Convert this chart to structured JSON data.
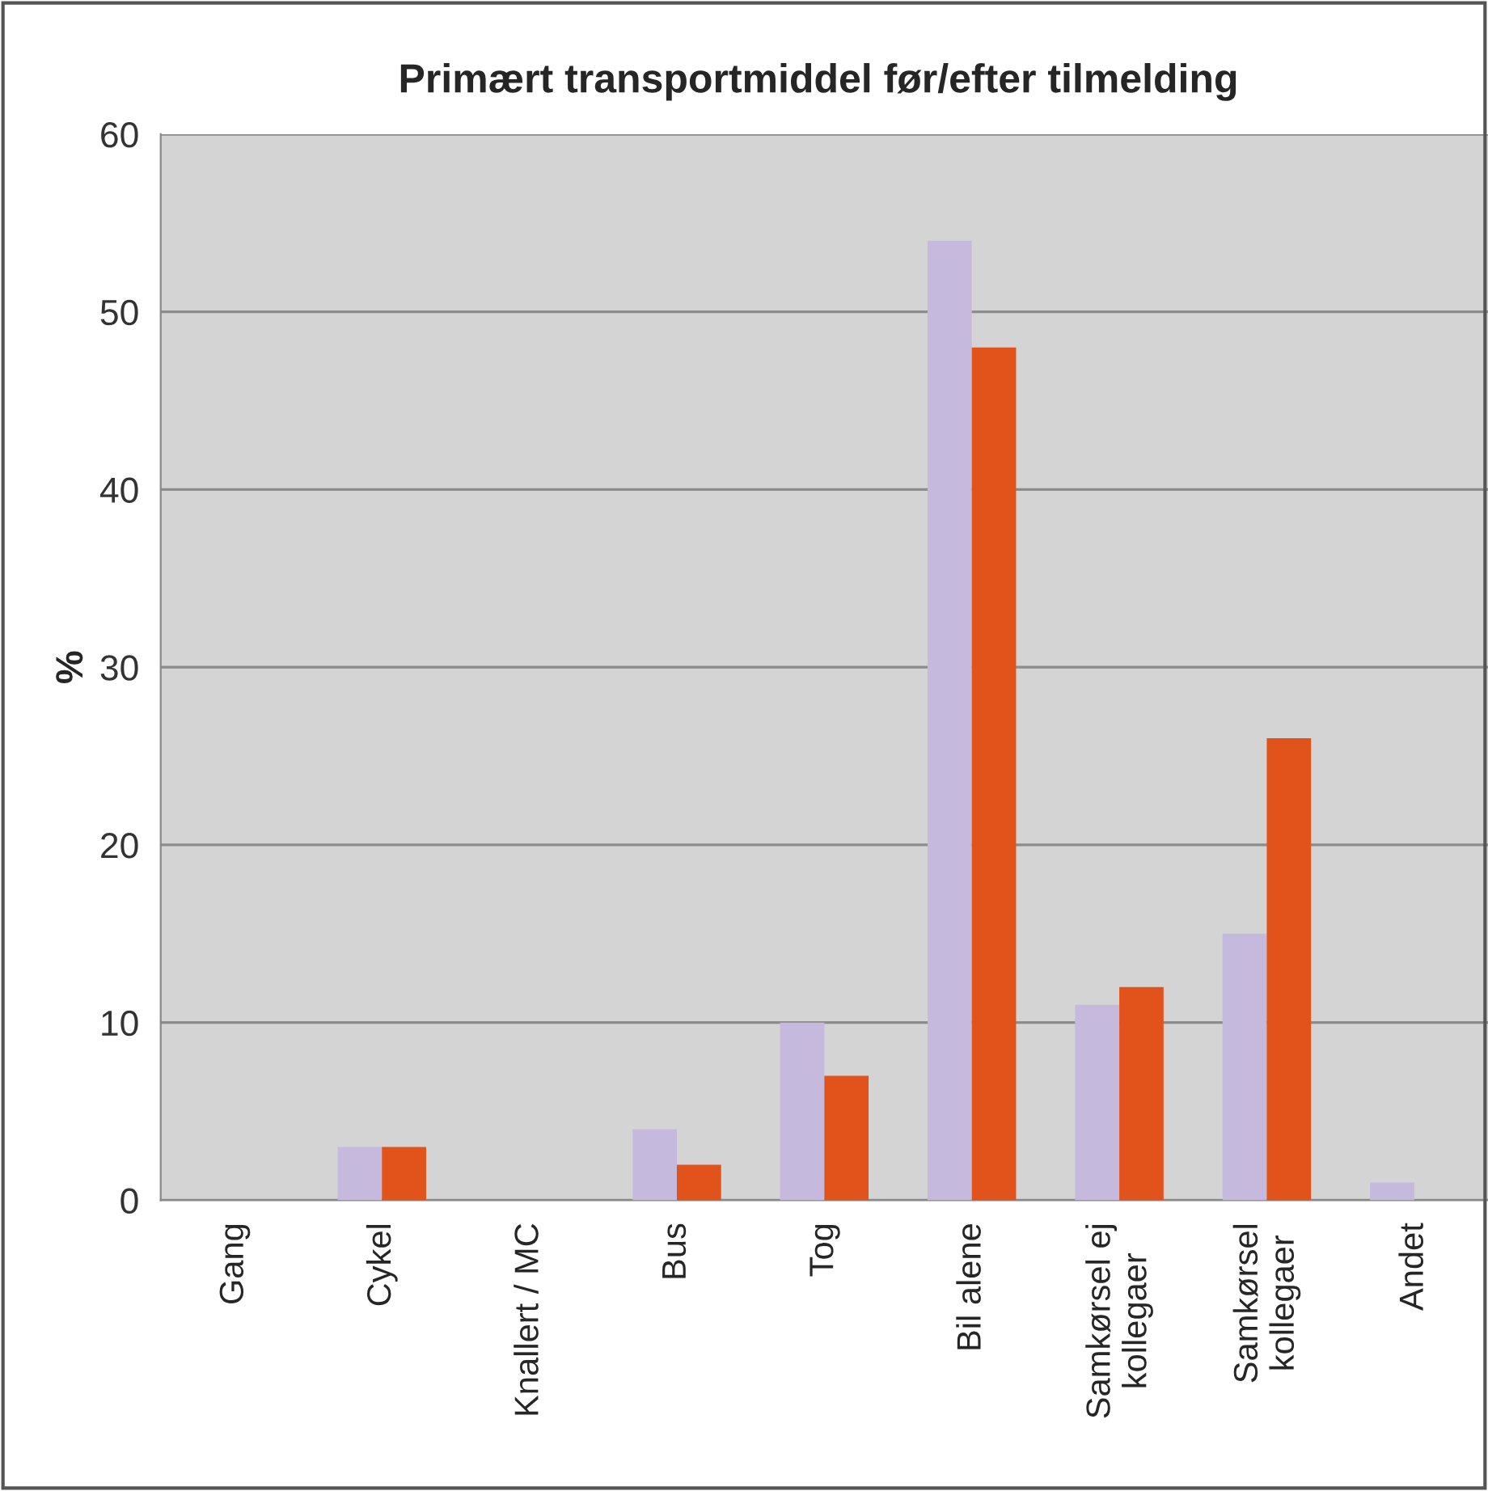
{
  "chart_data": {
    "type": "bar",
    "title": "Primært transportmiddel før/efter tilmelding",
    "ylabel": "%",
    "categories": [
      "Gang",
      "Cykel",
      "Knallert / MC",
      "Bus",
      "Tog",
      "Bil alene",
      "Samkørsel ej\nkollegaer",
      "Samkørsel\nkollegaer",
      "Andet"
    ],
    "series": [
      {
        "color": "#c5b9dd",
        "values": [
          0,
          3,
          0,
          4,
          10,
          54,
          11,
          15,
          1
        ]
      },
      {
        "color": "#e2521b",
        "values": [
          0,
          3,
          0,
          2,
          7,
          48,
          12,
          26,
          0
        ]
      }
    ],
    "ylim": [
      0,
      60
    ],
    "yticks": [
      0,
      10,
      20,
      30,
      40,
      50,
      60
    ],
    "grid": "y",
    "legend": false
  }
}
